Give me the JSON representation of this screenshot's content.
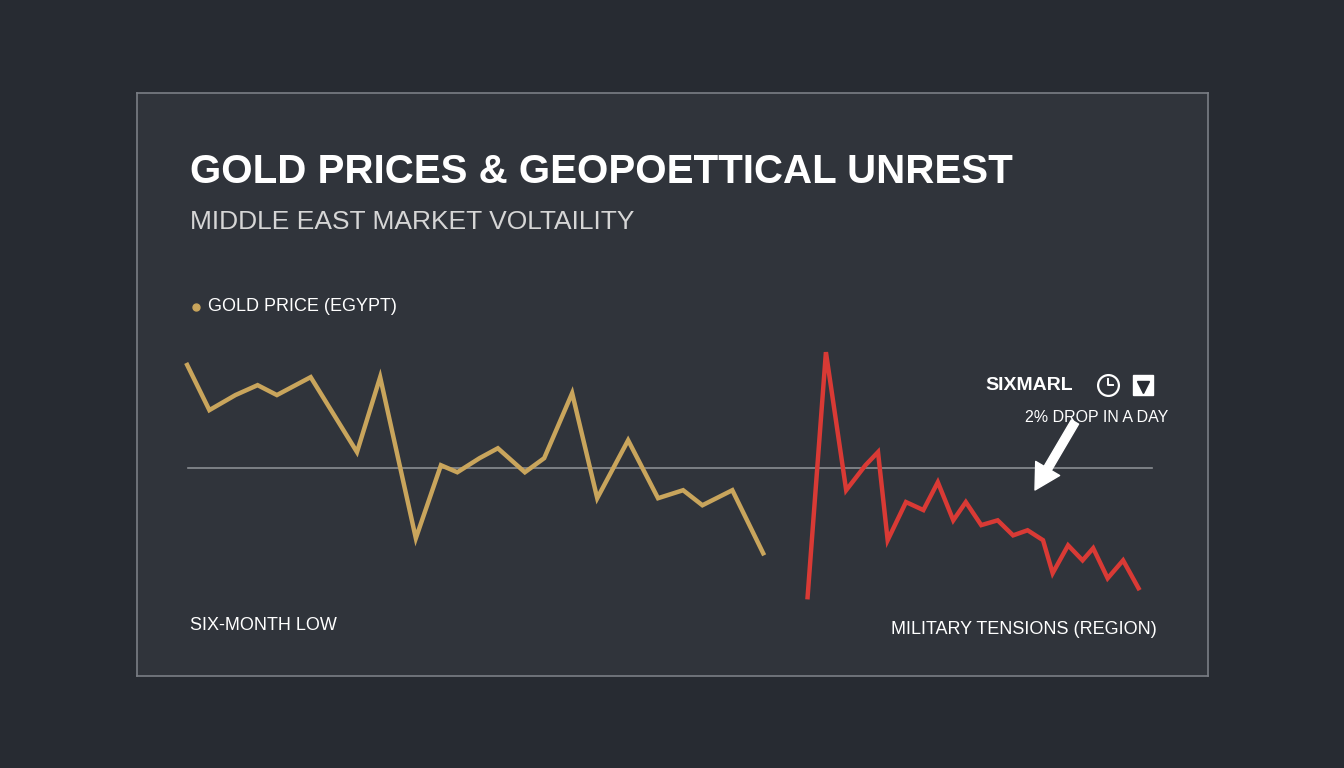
{
  "chart_data": {
    "type": "line",
    "title": "GOLD PRICES & GEOPOETTICAL UNREST",
    "subtitle": "MIDDLE EAST MARKET VOLTAILITY",
    "series": [
      {
        "name": "GOLD PRICE (EGYPT)",
        "color": "#c9a55c",
        "x": [
          0.2,
          2.5,
          5.2,
          7.5,
          9.5,
          13.0,
          17.8,
          20.2,
          23.9,
          26.5,
          28.2,
          30.5,
          32.4,
          35.2,
          37.2,
          40.1,
          42.7,
          45.9,
          49.0,
          51.6,
          53.6,
          56.7,
          59.9
        ],
        "values": [
          89.1,
          75.0,
          79.7,
          82.8,
          79.7,
          85.3,
          61.9,
          85.3,
          35.0,
          57.8,
          55.6,
          60.0,
          63.1,
          55.6,
          60.0,
          80.3,
          47.5,
          65.6,
          47.5,
          50.0,
          45.3,
          50.0,
          30.3
        ]
      },
      {
        "name": "MILITARY TENSIONS (REGION)",
        "color": "#d93a35",
        "x": [
          64.5,
          66.4,
          68.5,
          70.5,
          71.8,
          72.8,
          74.7,
          76.5,
          78.0,
          79.6,
          80.9,
          82.5,
          84.2,
          85.8,
          87.3,
          88.9,
          89.9,
          91.5,
          93.0,
          94.1,
          95.6,
          97.2,
          98.8
        ],
        "values": [
          16.6,
          93.1,
          50.0,
          57.8,
          61.9,
          34.4,
          46.3,
          43.8,
          52.5,
          40.6,
          46.3,
          39.1,
          40.6,
          35.9,
          37.5,
          34.4,
          24.1,
          32.8,
          28.1,
          31.9,
          22.5,
          28.1,
          19.4
        ]
      }
    ],
    "reference_line": 57,
    "annotations": [
      "SIX-MONTH LOW",
      "SIXMARL",
      "2% DROP IN A DAY"
    ],
    "xlim": [
      -5,
      106
    ],
    "ylim": [
      -8,
      174
    ],
    "tick_labels": false,
    "grid": false
  }
}
